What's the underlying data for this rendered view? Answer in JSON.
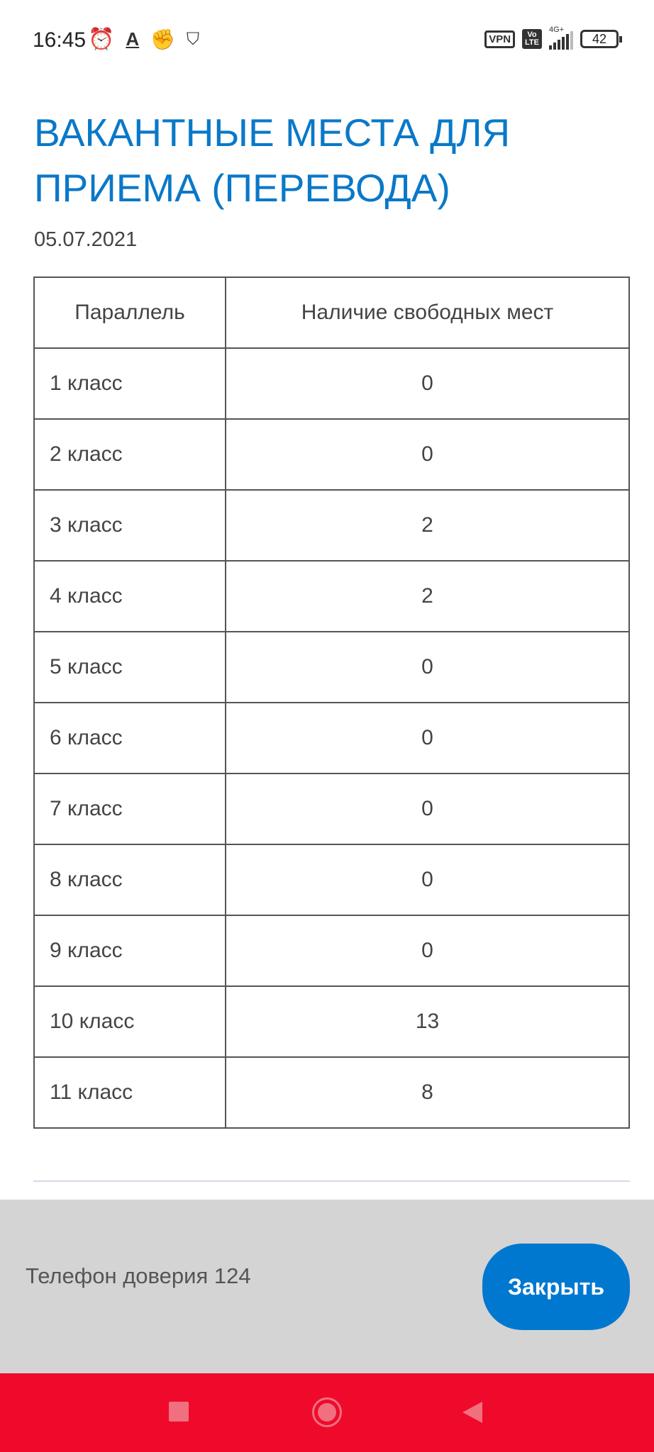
{
  "status_bar": {
    "time": "16:45",
    "vpn": "VPN",
    "volte_top": "Vo",
    "volte_bottom": "LTE",
    "network": "4G+",
    "battery": "42",
    "icons": [
      "alarm-icon",
      "font-a-icon",
      "fist-icon",
      "shield-phone-icon",
      "signal-icon",
      "battery-icon"
    ]
  },
  "page": {
    "title": "ВАКАНТНЫЕ МЕСТА ДЛЯ ПРИЕМА (ПЕРЕВОДА)",
    "date": "05.07.2021"
  },
  "table": {
    "headers": [
      "Параллель",
      "Наличие свободных мест"
    ],
    "rows": [
      {
        "grade": "1 класс",
        "free": "0"
      },
      {
        "grade": "2 класс",
        "free": "0"
      },
      {
        "grade": "3 класс",
        "free": "2"
      },
      {
        "grade": "4 класс",
        "free": "2"
      },
      {
        "grade": "5 класс",
        "free": "0"
      },
      {
        "grade": "6 класс",
        "free": "0"
      },
      {
        "grade": "7 класс",
        "free": "0"
      },
      {
        "grade": "8 класс",
        "free": "0"
      },
      {
        "grade": "9 класс",
        "free": "0"
      },
      {
        "grade": "10 класс",
        "free": "13"
      },
      {
        "grade": "11 класс",
        "free": "8"
      }
    ]
  },
  "footer": {
    "phone_text": "Телефон доверия 124",
    "close_label": "Закрыть"
  },
  "colors": {
    "title": "#0a78c8",
    "button": "#0078d0",
    "footer_bg": "#d4d4d4",
    "nav_bar": "#ef0a2b"
  }
}
